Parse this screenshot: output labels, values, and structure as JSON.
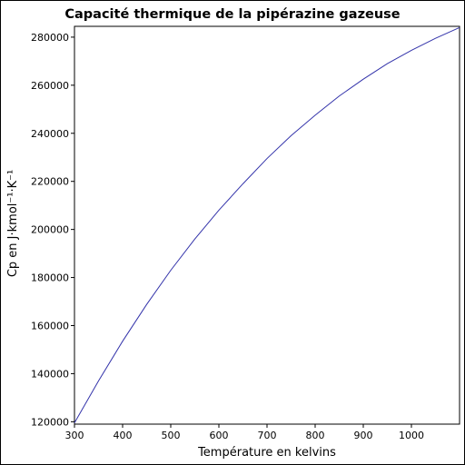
{
  "chart_data": {
    "type": "line",
    "title": "Capacité thermique de la pipérazine gazeuse",
    "xlabel": "Température en kelvins",
    "ylabel": "Cp en J·kmol⁻¹·K⁻¹",
    "xlim": [
      300,
      1100
    ],
    "ylim": [
      119000,
      284500
    ],
    "x_ticks": [
      300,
      400,
      500,
      600,
      700,
      800,
      900,
      1000
    ],
    "y_ticks": [
      120000,
      140000,
      160000,
      180000,
      200000,
      220000,
      240000,
      260000,
      280000
    ],
    "grid": false,
    "series": [
      {
        "color": "#3333aa",
        "x": [
          300,
          350,
          400,
          450,
          500,
          550,
          600,
          650,
          700,
          750,
          800,
          850,
          900,
          950,
          1000,
          1050,
          1100
        ],
        "y": [
          119500,
          137000,
          153500,
          168800,
          183000,
          196000,
          208000,
          219000,
          229500,
          239000,
          247500,
          255500,
          262500,
          269000,
          274500,
          279500,
          284000
        ]
      }
    ]
  }
}
